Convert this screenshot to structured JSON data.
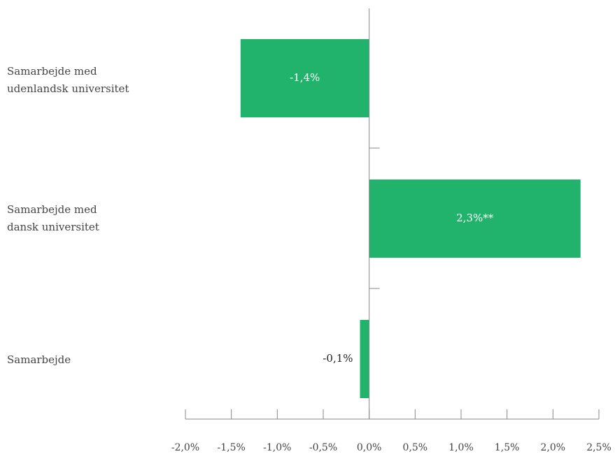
{
  "chart_data": {
    "type": "bar",
    "orientation": "horizontal",
    "categories": [
      "Samarbejde med\nudenlandsk universitet",
      "Samarbejde med\ndansk universitet",
      "Samarbejde"
    ],
    "values": [
      -1.4,
      2.3,
      -0.1
    ],
    "data_labels": [
      "-1,4%",
      "2,3%**",
      "-0,1%"
    ],
    "x_ticks": [
      -2.0,
      -1.5,
      -1.0,
      -0.5,
      0.0,
      0.5,
      1.0,
      1.5,
      2.0,
      2.5
    ],
    "x_tick_labels": [
      "-2,0%",
      "-1,5%",
      "-1,0%",
      "-0,5%",
      "0,0%",
      "0,5%",
      "1,0%",
      "1,5%",
      "2,0%",
      "2,5%"
    ],
    "xlim": [
      -2.0,
      2.5
    ],
    "title": "",
    "xlabel": "",
    "ylabel": "",
    "grid": false,
    "bar_color": "#21b26b"
  }
}
